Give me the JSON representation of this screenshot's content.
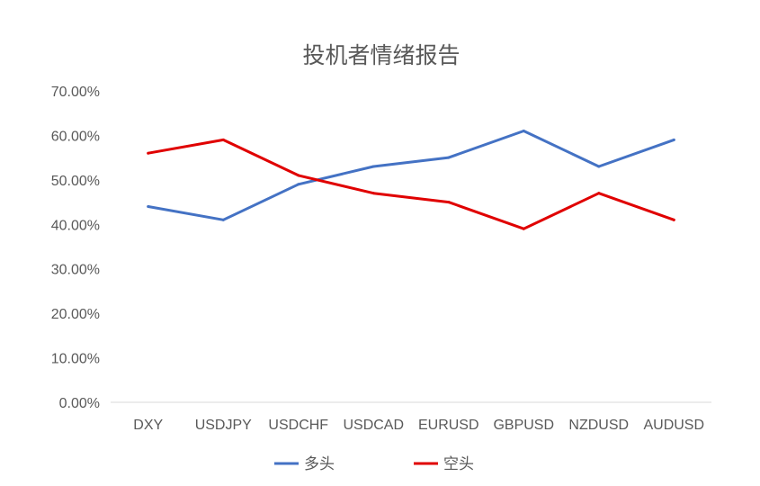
{
  "chart_data": {
    "type": "line",
    "title": "投机者情绪报告",
    "xlabel": "",
    "ylabel": "",
    "categories": [
      "DXY",
      "USDJPY",
      "USDCHF",
      "USDCAD",
      "EURUSD",
      "GBPUSD",
      "NZDUSD",
      "AUDUSD"
    ],
    "y_ticks": [
      "0.00%",
      "10.00%",
      "20.00%",
      "30.00%",
      "40.00%",
      "50.00%",
      "60.00%",
      "70.00%"
    ],
    "ylim": [
      0,
      70
    ],
    "grid": false,
    "legend_position": "bottom",
    "series": [
      {
        "name": "多头",
        "color": "#4472C4",
        "values": [
          44,
          41,
          49,
          53,
          55,
          61,
          53,
          59
        ]
      },
      {
        "name": "空头",
        "color": "#E00000",
        "values": [
          56,
          59,
          51,
          47,
          45,
          39,
          47,
          41
        ]
      }
    ]
  }
}
